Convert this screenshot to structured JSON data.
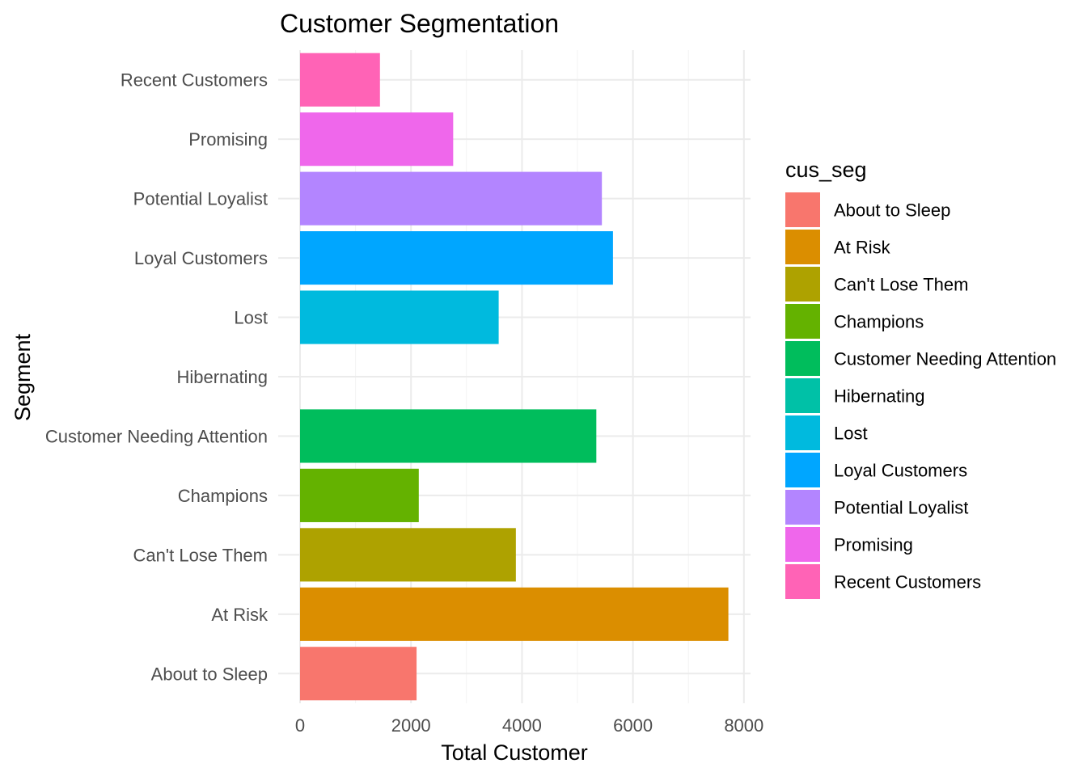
{
  "chart_data": {
    "type": "bar",
    "orientation": "horizontal",
    "title": "Customer Segmentation",
    "xlabel": "Total Customer",
    "ylabel": "Segment",
    "xlim": [
      0,
      8000
    ],
    "x_ticks": [
      0,
      2000,
      4000,
      6000,
      8000
    ],
    "grid": true,
    "legend_position": "right",
    "legend_title": "cus_seg",
    "categories": [
      "About to Sleep",
      "At Risk",
      "Can't Lose Them",
      "Champions",
      "Customer Needing Attention",
      "Hibernating",
      "Lost",
      "Loyal Customers",
      "Potential Loyalist",
      "Promising",
      "Recent Customers"
    ],
    "values": [
      2100,
      7720,
      3890,
      2140,
      5340,
      0,
      3580,
      5640,
      5440,
      2760,
      1440
    ],
    "colors": [
      "#F8766D",
      "#DB8E00",
      "#AEA200",
      "#64B200",
      "#00BD5C",
      "#00C1A7",
      "#00BADE",
      "#00A6FF",
      "#B385FF",
      "#EF67EB",
      "#FF63B6"
    ]
  }
}
